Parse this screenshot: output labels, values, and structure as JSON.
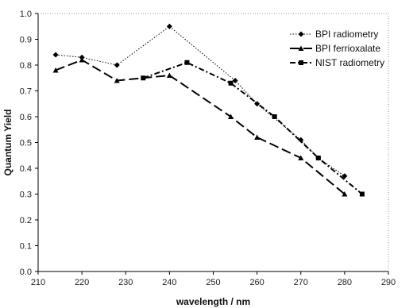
{
  "chart_data": {
    "type": "line",
    "xlabel": "wavelength / nm",
    "ylabel": "Quantum Yield",
    "xlim": [
      210,
      290
    ],
    "ylim": [
      0.0,
      1.0
    ],
    "x_ticks": [
      "210",
      "220",
      "230",
      "240",
      "250",
      "260",
      "270",
      "280",
      "290"
    ],
    "y_ticks": [
      "0.0",
      "0.1",
      "0.2",
      "0.3",
      "0.4",
      "0.5",
      "0.6",
      "0.7",
      "0.8",
      "0.9",
      "1.0"
    ],
    "grid": false,
    "legend_position": "top-right",
    "series": [
      {
        "name": "BPI radiometry",
        "style": "dotted",
        "marker": "diamond",
        "color": "#000000",
        "points": [
          {
            "x": 214,
            "y": 0.84
          },
          {
            "x": 220,
            "y": 0.83
          },
          {
            "x": 228,
            "y": 0.8
          },
          {
            "x": 240,
            "y": 0.95
          },
          {
            "x": 255,
            "y": 0.74
          },
          {
            "x": 260,
            "y": 0.65
          },
          {
            "x": 270,
            "y": 0.51
          },
          {
            "x": 274,
            "y": 0.44
          },
          {
            "x": 280,
            "y": 0.37
          }
        ]
      },
      {
        "name": "BPI ferrioxalate",
        "style": "longdash",
        "marker": "triangle",
        "color": "#000000",
        "points": [
          {
            "x": 214,
            "y": 0.78
          },
          {
            "x": 220,
            "y": 0.82
          },
          {
            "x": 228,
            "y": 0.74
          },
          {
            "x": 240,
            "y": 0.76
          },
          {
            "x": 254,
            "y": 0.6
          },
          {
            "x": 260,
            "y": 0.52
          },
          {
            "x": 270,
            "y": 0.44
          },
          {
            "x": 280,
            "y": 0.3
          }
        ]
      },
      {
        "name": "NIST radiometry",
        "style": "dashdot",
        "marker": "square",
        "color": "#000000",
        "points": [
          {
            "x": 234,
            "y": 0.75
          },
          {
            "x": 244,
            "y": 0.81
          },
          {
            "x": 254,
            "y": 0.73
          },
          {
            "x": 264,
            "y": 0.6
          },
          {
            "x": 274,
            "y": 0.44
          },
          {
            "x": 284,
            "y": 0.3
          }
        ]
      }
    ]
  }
}
